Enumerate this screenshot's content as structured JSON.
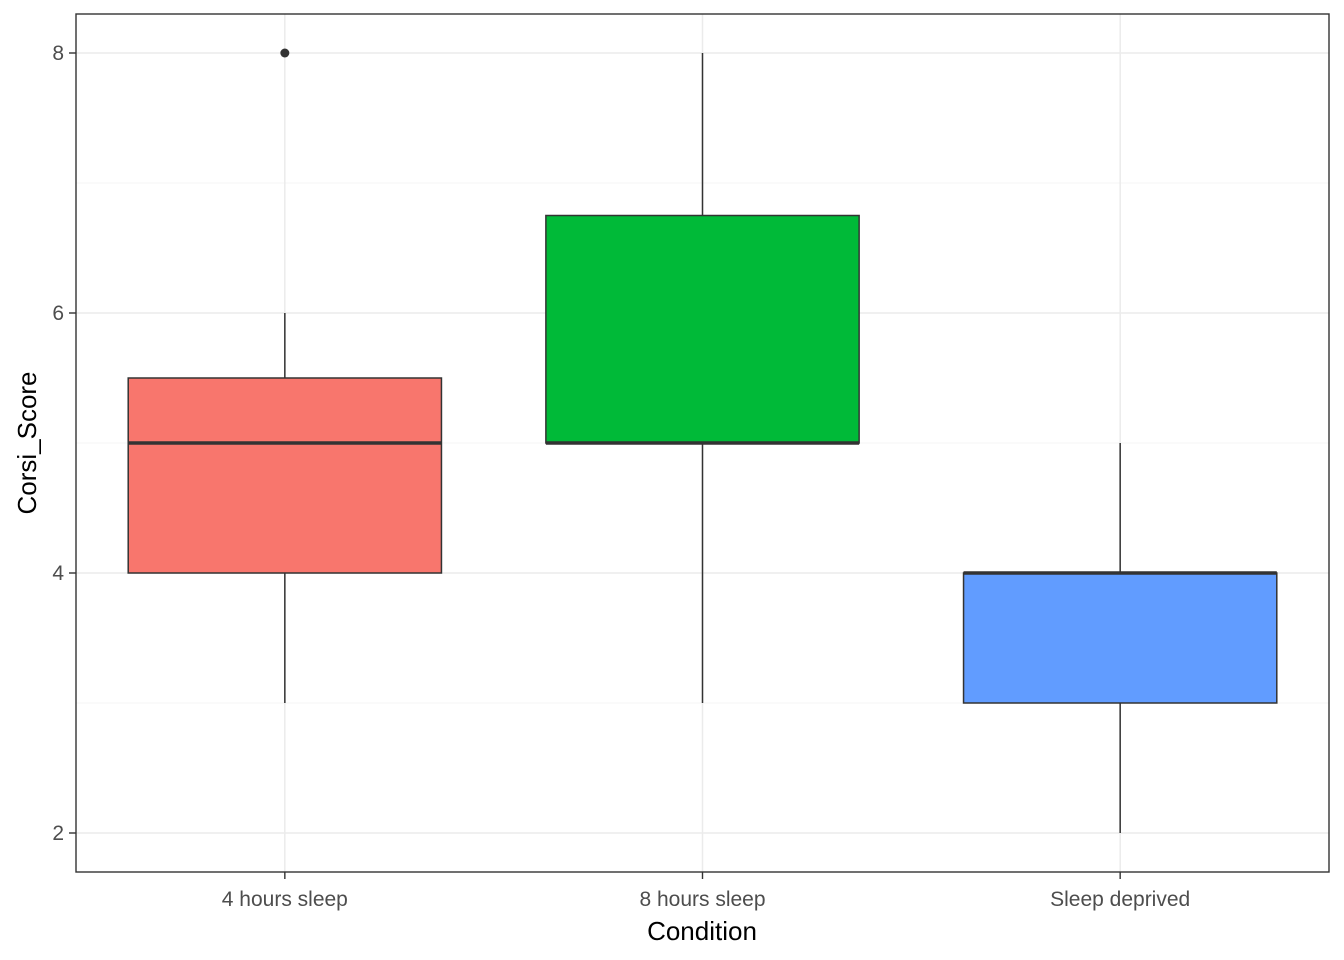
{
  "chart_data": {
    "type": "box",
    "xlabel": "Condition",
    "ylabel": "Corsi_Score",
    "ylim": [
      1.7,
      8.3
    ],
    "yticks": [
      2,
      4,
      6,
      8
    ],
    "grid": true,
    "categories": [
      "4 hours sleep",
      "8 hours sleep",
      "Sleep deprived"
    ],
    "boxes": [
      {
        "category": "4 hours sleep",
        "whisker_low": 3,
        "q1": 4,
        "median": 5,
        "q3": 5.5,
        "whisker_high": 6,
        "outliers": [
          8
        ],
        "fill": "#F8766D"
      },
      {
        "category": "8 hours sleep",
        "whisker_low": 3,
        "q1": 5,
        "median": 5,
        "q3": 6.75,
        "whisker_high": 8,
        "outliers": [],
        "fill": "#00BA38"
      },
      {
        "category": "Sleep deprived",
        "whisker_low": 2,
        "q1": 3,
        "median": 4,
        "q3": 4,
        "whisker_high": 5,
        "outliers": [],
        "fill": "#619CFF"
      }
    ]
  },
  "colors": {
    "outline": "#333333",
    "grid_major": "#ebebeb",
    "grid_minor": "#f4f4f4",
    "panel_border": "#333333"
  }
}
